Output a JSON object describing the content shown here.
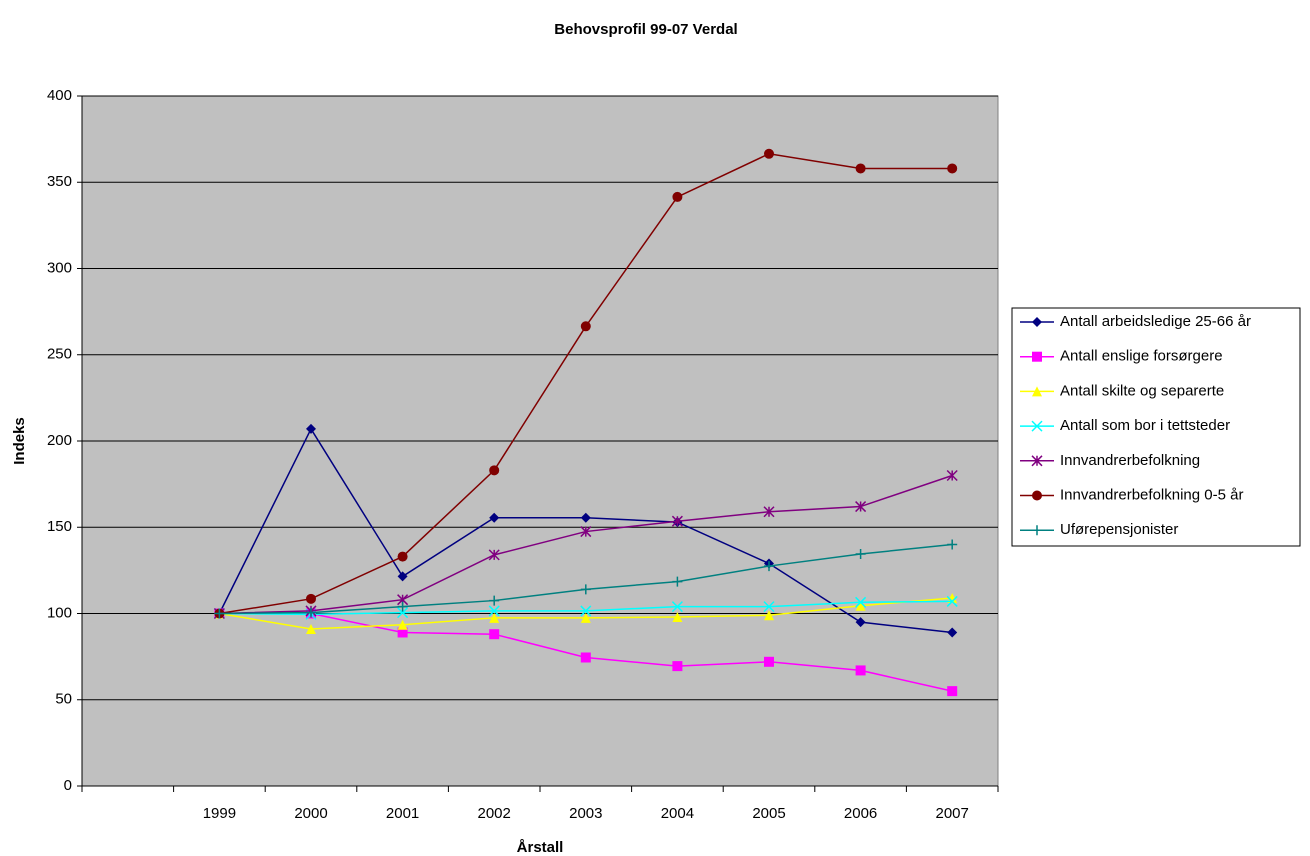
{
  "chart_data": {
    "type": "line",
    "title": "Behovsprofil 99-07 Verdal",
    "x_label": "Årstall",
    "y_label": "Indeks",
    "categories": [
      null,
      "1999",
      "2000",
      "2001",
      "2002",
      "2003",
      "2004",
      "2005",
      "2006",
      "2007"
    ],
    "ylim": [
      0,
      400
    ],
    "yticks": [
      0,
      50,
      100,
      150,
      200,
      250,
      300,
      350,
      400
    ],
    "grid": true,
    "legend": "right",
    "series": [
      {
        "name": "Antall arbeidsledige 25-66 år",
        "color": "#000080",
        "marker": "diamond",
        "values": [
          null,
          100,
          207,
          121.5,
          155.5,
          155.5,
          153,
          129,
          95,
          89
        ]
      },
      {
        "name": "Antall enslige forsørgere",
        "color": "#ff00ff",
        "marker": "square",
        "values": [
          null,
          100,
          100,
          89,
          88,
          74.5,
          69.5,
          72,
          67,
          55
        ]
      },
      {
        "name": "Antall skilte og separerte",
        "color": "#ffff00",
        "marker": "triangle",
        "values": [
          null,
          100,
          91,
          93.5,
          97.5,
          97.5,
          98,
          99,
          104.5,
          109
        ]
      },
      {
        "name": "Antall som bor i tettsteder",
        "color": "#00ffff",
        "marker": "x",
        "values": [
          null,
          100,
          99.5,
          100.5,
          101.5,
          101.5,
          104,
          104,
          106.5,
          107
        ]
      },
      {
        "name": "Innvandrerbefolkning",
        "color": "#800080",
        "marker": "star",
        "values": [
          null,
          100,
          101.5,
          108,
          134,
          147.5,
          153.5,
          159,
          162,
          180
        ]
      },
      {
        "name": "Innvandrerbefolkning 0-5 år",
        "color": "#800000",
        "marker": "circle",
        "values": [
          null,
          100,
          108.5,
          133,
          183,
          266.5,
          341.5,
          366.5,
          358,
          358
        ]
      },
      {
        "name": "Uførepensjonister",
        "color": "#008080",
        "marker": "plus",
        "values": [
          null,
          100,
          100.5,
          104,
          107.5,
          114,
          118.5,
          127.5,
          134.5,
          140
        ]
      }
    ]
  }
}
